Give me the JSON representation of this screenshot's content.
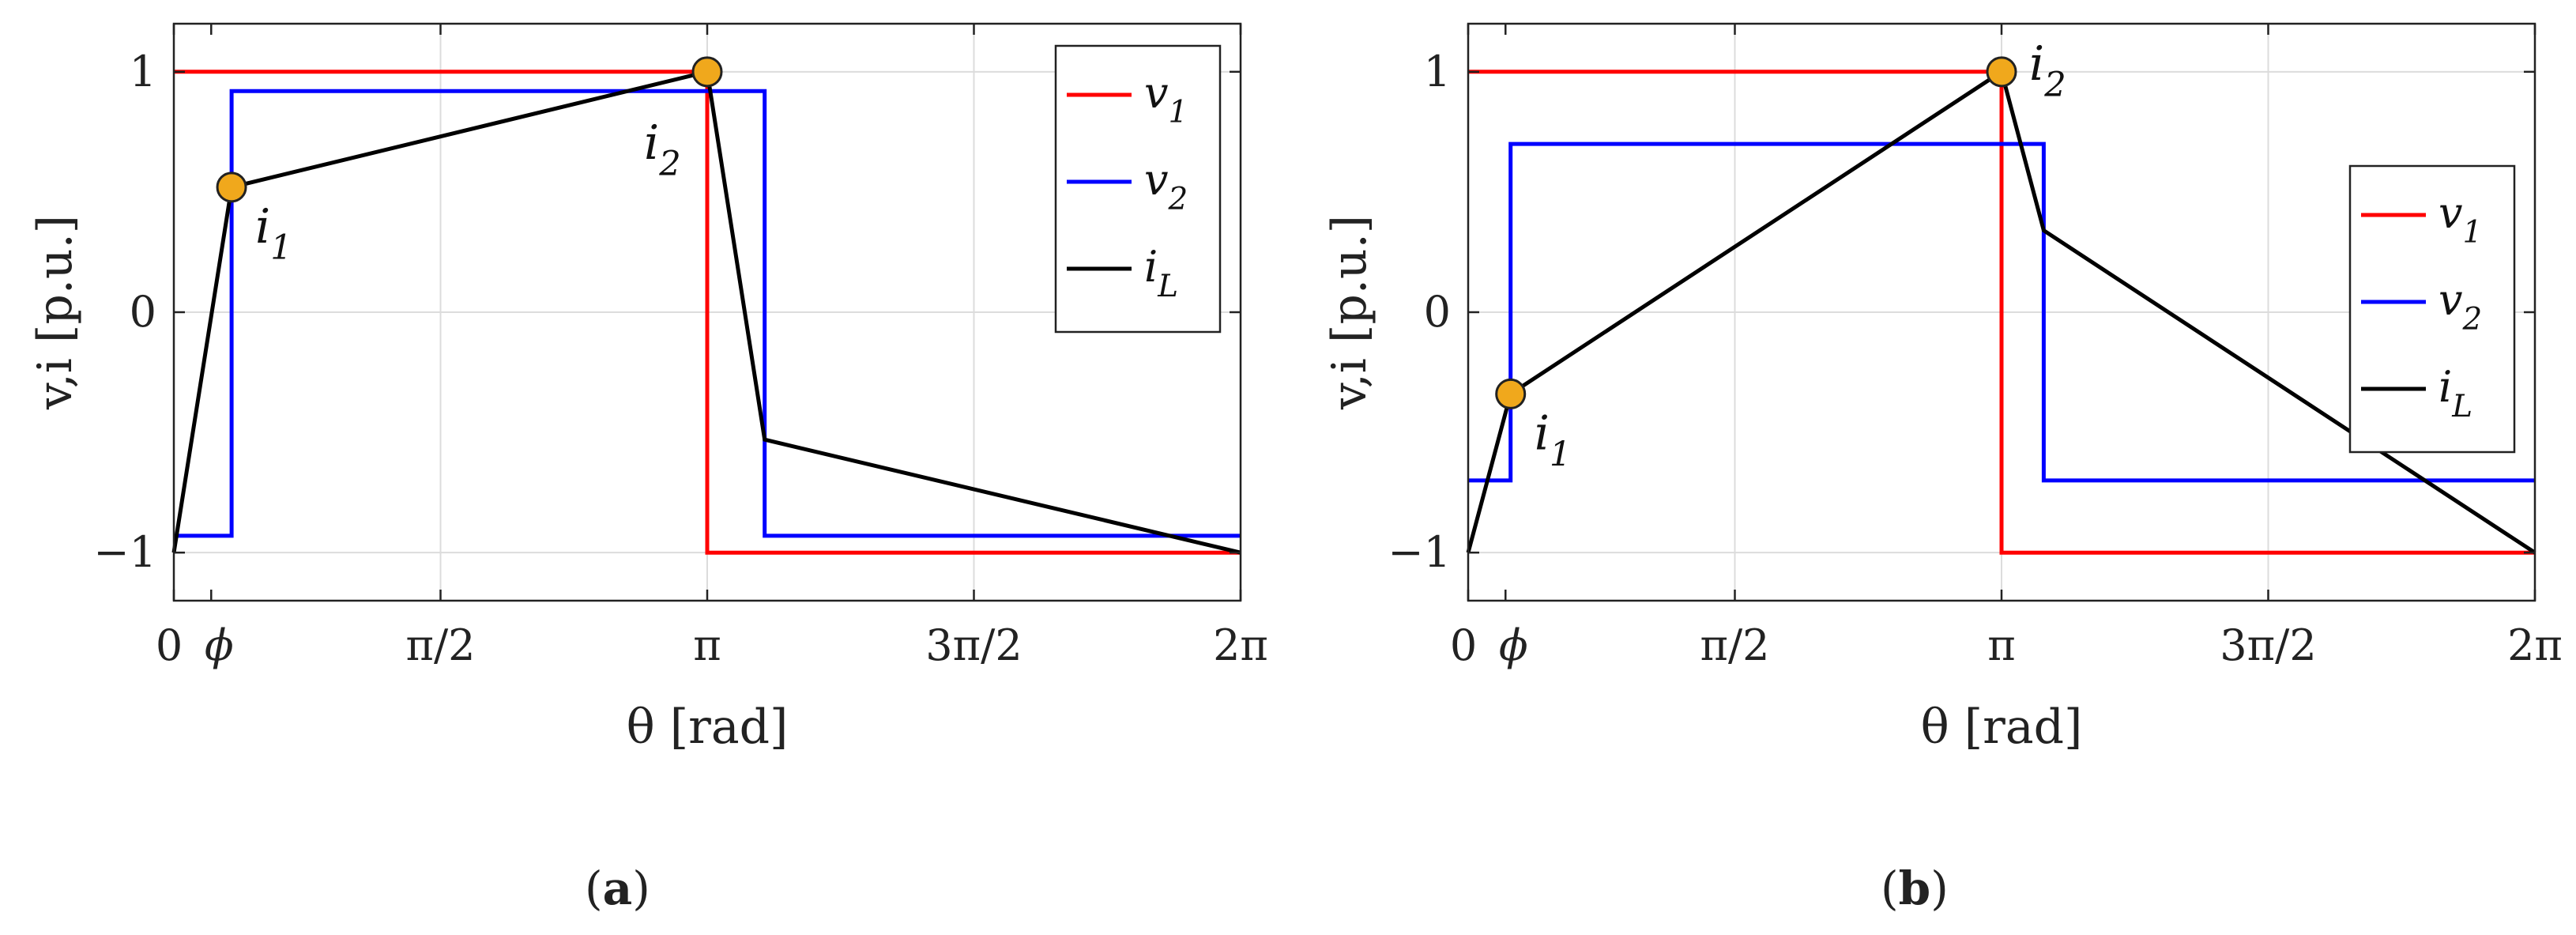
{
  "chart_data": [
    {
      "panel": "a",
      "caption": "(a)",
      "type": "line",
      "xlabel": "θ [rad]",
      "ylabel": "v,i [p.u.]",
      "xlim": [
        0,
        6.2832
      ],
      "ylim": [
        -1.2,
        1.2
      ],
      "xticks": [
        {
          "value": 0,
          "label": "0"
        },
        {
          "value": 0.22,
          "label": "ϕ"
        },
        {
          "value": 1.5708,
          "label": "π/2"
        },
        {
          "value": 3.1416,
          "label": "π"
        },
        {
          "value": 4.7124,
          "label": "3π/2"
        },
        {
          "value": 6.2832,
          "label": "2π"
        }
      ],
      "yticks": [
        {
          "value": -1,
          "label": "−1"
        },
        {
          "value": 0,
          "label": "0"
        },
        {
          "value": 1,
          "label": "1"
        }
      ],
      "grid": true,
      "legend": {
        "position": "top-right"
      },
      "series": [
        {
          "name": "v1",
          "label_main": "v",
          "label_sub": "1",
          "color": "#ff0000",
          "x": [
            0,
            3.1416,
            3.1416,
            6.2832
          ],
          "y": [
            1,
            1,
            -1,
            -1
          ]
        },
        {
          "name": "v2",
          "label_main": "v",
          "label_sub": "2",
          "color": "#0000ff",
          "x": [
            0,
            0.34,
            0.34,
            3.48,
            3.48,
            6.2832
          ],
          "y": [
            -0.93,
            -0.93,
            0.92,
            0.92,
            -0.93,
            -0.93
          ]
        },
        {
          "name": "iL",
          "label_main": "i",
          "label_sub": "L",
          "color": "#000000",
          "x": [
            0,
            0.34,
            3.1416,
            3.48,
            6.2832
          ],
          "y": [
            -1,
            0.52,
            1,
            -0.53,
            -1
          ]
        }
      ],
      "markers": [
        {
          "label_main": "i",
          "label_sub": "1",
          "x": 0.34,
          "y": 0.52,
          "label_pos": "below-right",
          "color": "#f0a81c"
        },
        {
          "label_main": "i",
          "label_sub": "2",
          "x": 3.1416,
          "y": 1,
          "label_pos": "below-left",
          "color": "#f0a81c"
        }
      ]
    },
    {
      "panel": "b",
      "caption": "(b)",
      "type": "line",
      "xlabel": "θ [rad]",
      "ylabel": "v,i [p.u.]",
      "xlim": [
        0,
        6.2832
      ],
      "ylim": [
        -1.2,
        1.2
      ],
      "xticks": [
        {
          "value": 0,
          "label": "0"
        },
        {
          "value": 0.22,
          "label": "ϕ"
        },
        {
          "value": 1.5708,
          "label": "π/2"
        },
        {
          "value": 3.1416,
          "label": "π"
        },
        {
          "value": 4.7124,
          "label": "3π/2"
        },
        {
          "value": 6.2832,
          "label": "2π"
        }
      ],
      "yticks": [
        {
          "value": -1,
          "label": "−1"
        },
        {
          "value": 0,
          "label": "0"
        },
        {
          "value": 1,
          "label": "1"
        }
      ],
      "grid": true,
      "legend": {
        "position": "right"
      },
      "series": [
        {
          "name": "v1",
          "label_main": "v",
          "label_sub": "1",
          "color": "#ff0000",
          "x": [
            0,
            3.1416,
            3.1416,
            6.2832
          ],
          "y": [
            1,
            1,
            -1,
            -1
          ]
        },
        {
          "name": "v2",
          "label_main": "v",
          "label_sub": "2",
          "color": "#0000ff",
          "x": [
            0,
            0.25,
            0.25,
            3.39,
            3.39,
            6.2832
          ],
          "y": [
            -0.7,
            -0.7,
            0.7,
            0.7,
            -0.7,
            -0.7
          ]
        },
        {
          "name": "iL",
          "label_main": "i",
          "label_sub": "L",
          "color": "#000000",
          "x": [
            0,
            0.25,
            3.1416,
            3.39,
            6.2832
          ],
          "y": [
            -1,
            -0.34,
            1,
            0.34,
            -1
          ]
        }
      ],
      "markers": [
        {
          "label_main": "i",
          "label_sub": "1",
          "x": 0.25,
          "y": -0.34,
          "label_pos": "below-right",
          "color": "#f0a81c"
        },
        {
          "label_main": "i",
          "label_sub": "2",
          "x": 3.1416,
          "y": 1,
          "label_pos": "right",
          "color": "#f0a81c"
        }
      ]
    }
  ]
}
